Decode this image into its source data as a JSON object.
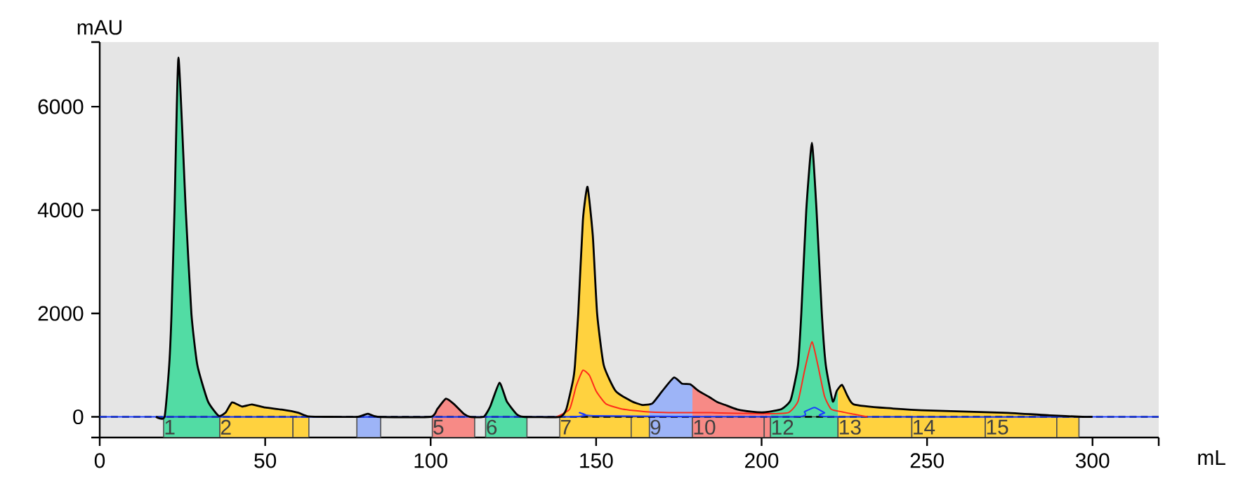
{
  "chart_data": {
    "type": "area",
    "xlabel": "mL",
    "ylabel": "mAU",
    "xlim": [
      0,
      320
    ],
    "ylim": [
      -400,
      7250
    ],
    "xticks": [
      0,
      50,
      100,
      150,
      200,
      250,
      300,
      {
        "value": 320,
        "label": null
      }
    ],
    "yticks": [
      {
        "value": -400,
        "label": null
      },
      0,
      2000,
      4000,
      6000,
      {
        "value": 7250,
        "label": null
      }
    ],
    "series": [
      {
        "type": "line",
        "color": "#1a3cff",
        "x": [
          0,
          140,
          145,
          150,
          210,
          213,
          216,
          219,
          222,
          320
        ],
        "values": [
          0,
          0,
          80,
          20,
          0,
          100,
          180,
          80,
          0,
          0
        ]
      },
      {
        "type": "line",
        "color": "#ff2a1a",
        "x": [
          138,
          142,
          144,
          146,
          148,
          150,
          153,
          158,
          165,
          175,
          185,
          200,
          208,
          211,
          213,
          215.2,
          217,
          219,
          221,
          224,
          228,
          232
        ],
        "values": [
          0,
          150,
          600,
          900,
          800,
          500,
          250,
          150,
          100,
          80,
          80,
          60,
          80,
          300,
          900,
          1450,
          1000,
          400,
          150,
          100,
          50,
          0
        ]
      },
      {
        "color": "#000000",
        "x": [
          17,
          19.6,
          21,
          21.7,
          22.6,
          23.8,
          26,
          27.7,
          29.5,
          32.7,
          35.9,
          38,
          40,
          43,
          46,
          50,
          55,
          60,
          63,
          70,
          78,
          81,
          84,
          100,
          102,
          104.6,
          107,
          110,
          112,
          116,
          118,
          120.8,
          123,
          126,
          128,
          139,
          141,
          143,
          143.6,
          144.6,
          146,
          147.4,
          149,
          150.3,
          152.3,
          155.9,
          160.8,
          164,
          167,
          170,
          173.5,
          176,
          178.4,
          181,
          184,
          186.8,
          189,
          192.6,
          197,
          201,
          206,
          208.8,
          211,
          212,
          213.5,
          215.2,
          216.6,
          218.2,
          219.4,
          221.5,
          222.7,
          224.3,
          226,
          227.9,
          237.7,
          251.9,
          273,
          287,
          297,
          300
        ],
        "values": [
          0,
          0,
          1000,
          2000,
          4000,
          6950,
          4000,
          2000,
          1000,
          300,
          20,
          80,
          280,
          200,
          240,
          180,
          140,
          80,
          10,
          0,
          0,
          60,
          0,
          0,
          150,
          350,
          250,
          60,
          0,
          0,
          200,
          660,
          300,
          50,
          0,
          0,
          150,
          700,
          1000,
          2000,
          3800,
          4450,
          3500,
          2000,
          1000,
          500,
          300,
          230,
          260,
          500,
          760,
          640,
          630,
          500,
          390,
          280,
          230,
          145,
          100,
          90,
          150,
          330,
          1000,
          2000,
          4000,
          5300,
          4000,
          2000,
          1000,
          300,
          500,
          620,
          400,
          240,
          170,
          120,
          80,
          30,
          0,
          0
        ]
      }
    ],
    "ref_lines": [
      {
        "axis": "y",
        "value": 0,
        "color": "#000000",
        "line_style": "dashed"
      }
    ],
    "bands": [
      {
        "axis": "x",
        "from": 19.3,
        "to": 36.3,
        "label": "1",
        "color": "#52dca4"
      },
      {
        "axis": "x",
        "from": 36.3,
        "to": 58.4,
        "label": "2",
        "color": "#ffd23f"
      },
      {
        "axis": "x",
        "from": 58.4,
        "to": 63.2,
        "color": "#ffd23f"
      },
      {
        "axis": "x",
        "from": 77.7,
        "to": 84.9,
        "color": "#9db4f7"
      },
      {
        "axis": "x",
        "from": 100.5,
        "to": 113.3,
        "label": "5",
        "color": "#f78a86"
      },
      {
        "axis": "x",
        "from": 116.6,
        "to": 129.1,
        "label": "6",
        "color": "#52dca4"
      },
      {
        "axis": "x",
        "from": 139,
        "to": 160.6,
        "label": "7",
        "color": "#ffd23f"
      },
      {
        "axis": "x",
        "from": 160.6,
        "to": 166.1,
        "color": "#ffd23f"
      },
      {
        "axis": "x",
        "from": 166.1,
        "to": 179.1,
        "label": "9",
        "color": "#9db4f7"
      },
      {
        "axis": "x",
        "from": 179.1,
        "to": 200.8,
        "label": "10",
        "color": "#f78a86"
      },
      {
        "axis": "x",
        "from": 200.8,
        "to": 202.7,
        "color": "#f78a86"
      },
      {
        "axis": "x",
        "from": 202.7,
        "to": 223.1,
        "label": "12",
        "color": "#52dca4"
      },
      {
        "axis": "x",
        "from": 223.1,
        "to": 245.4,
        "label": "13",
        "color": "#ffd23f"
      },
      {
        "axis": "x",
        "from": 245.4,
        "to": 267.6,
        "label": "14",
        "color": "#ffd23f"
      },
      {
        "axis": "x",
        "from": 267.6,
        "to": 289.2,
        "label": "15",
        "color": "#ffd23f"
      },
      {
        "axis": "x",
        "from": 289.2,
        "to": 295.9,
        "color": "#ffd23f"
      }
    ]
  }
}
